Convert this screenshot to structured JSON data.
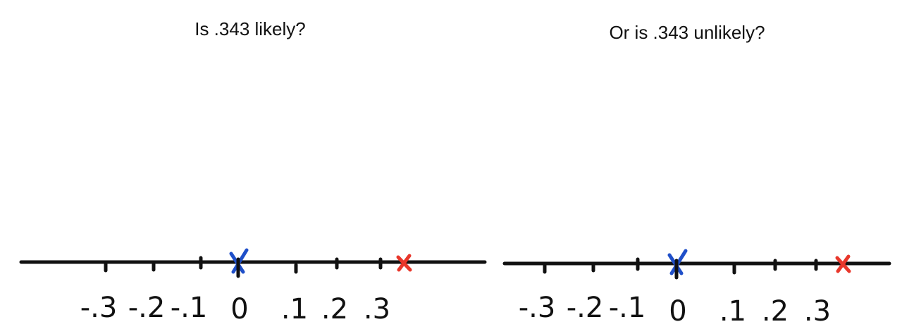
{
  "colors": {
    "curve": "#1f4fc9",
    "observed_mark": "#1f4fc9",
    "sample_mark": "#e8372b",
    "ink": "#111111"
  },
  "panels": [
    {
      "title": "Is .343 likely?",
      "tick_labels": [
        "-.3",
        "-.2",
        "-.1",
        "0",
        ".1",
        ".2",
        ".3"
      ],
      "mean_mark": "x",
      "sample_mark": "x"
    },
    {
      "title": "Or is .343 unlikely?",
      "tick_labels": [
        "-.3",
        "-.2",
        "-.1",
        "0",
        ".1",
        ".2",
        ".3"
      ],
      "mean_mark": "x",
      "sample_mark": "x",
      "arrow": "arrow-right-icon"
    }
  ]
}
